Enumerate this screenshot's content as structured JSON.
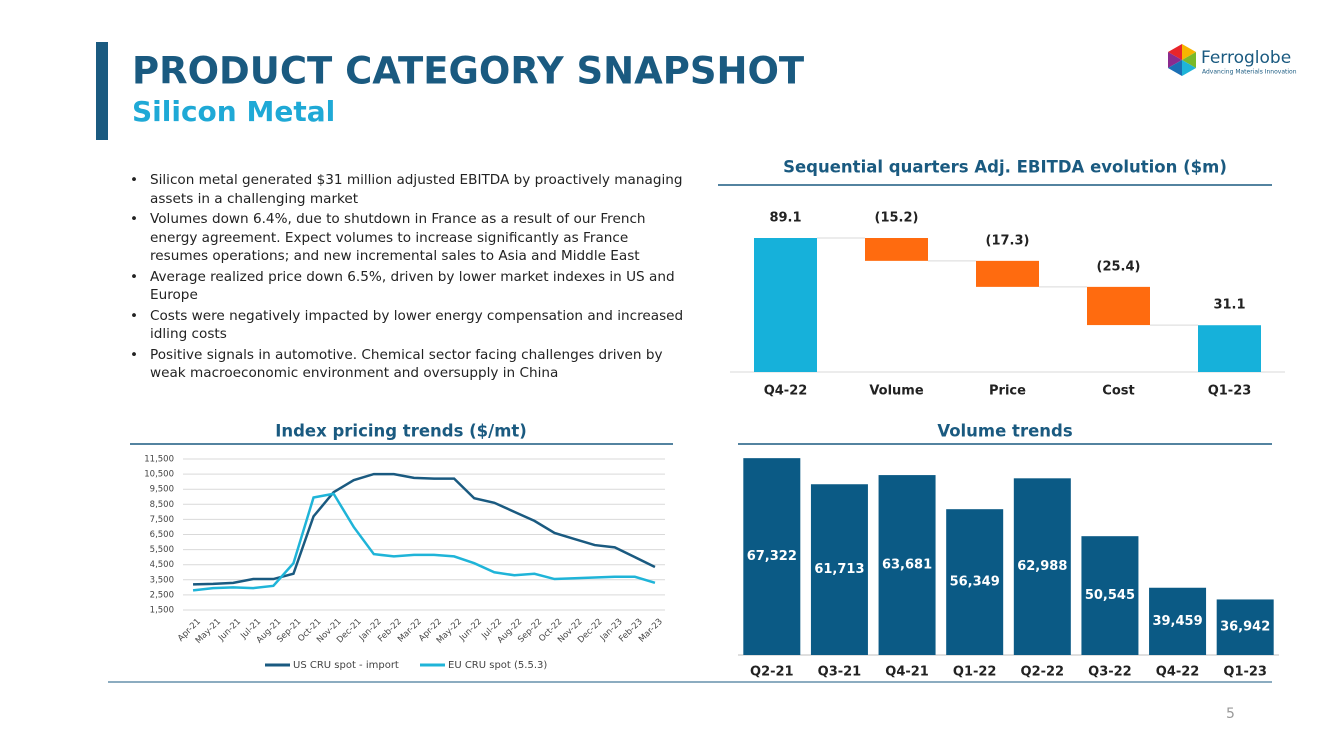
{
  "header": {
    "title": "PRODUCT CATEGORY SNAPSHOT",
    "subtitle": "Silicon Metal"
  },
  "logo": {
    "name": "Ferroglobe",
    "tagline": "Advancing Materials Innovation"
  },
  "bullets": [
    "Silicon metal generated $31 million adjusted EBITDA by proactively managing assets in a challenging market",
    "Volumes down 6.4%, due to shutdown in France as a result of our French energy agreement. Expect volumes to increase significantly as France resumes operations; and new incremental sales to Asia and Middle East",
    "Average realized price down 6.5%, driven by lower market indexes in US and Europe",
    "Costs were negatively impacted by lower energy compensation and increased idling costs",
    "Positive signals in automotive. Chemical sector facing challenges driven by weak macroeconomic environment and oversupply in China"
  ],
  "page_number": "5",
  "chart_data": [
    {
      "type": "waterfall",
      "title": "Sequential quarters Adj. EBITDA evolution ($m)",
      "categories": [
        "Q4-22",
        "Volume",
        "Price",
        "Cost",
        "Q1-23"
      ],
      "values": [
        89.1,
        -15.2,
        -17.3,
        -25.4,
        31.1
      ],
      "value_labels": [
        "89.1",
        "(15.2)",
        "(17.3)",
        "(25.4)",
        "31.1"
      ],
      "colors": [
        "#16b1da",
        "#ff6b0f",
        "#ff6b0f",
        "#ff6b0f",
        "#16b1da"
      ]
    },
    {
      "type": "line",
      "title": "Index pricing trends ($/mt)",
      "categories": [
        "Apr-21",
        "May-21",
        "Jun-21",
        "Jul-21",
        "Aug-21",
        "Sep-21",
        "Oct-21",
        "Nov-21",
        "Dec-21",
        "Jan-22",
        "Feb-22",
        "Mar-22",
        "Apr-22",
        "May-22",
        "Jun-22",
        "Jul-22",
        "Aug-22",
        "Sep-22",
        "Oct-22",
        "Nov-22",
        "Dec-22",
        "Jan-23",
        "Feb-23",
        "Mar-23"
      ],
      "series": [
        {
          "name": "US CRU spot - import",
          "color": "#1a5a80",
          "values": [
            3200,
            3230,
            3300,
            3550,
            3550,
            3900,
            7700,
            9300,
            10100,
            10500,
            10500,
            10250,
            10200,
            10200,
            8900,
            8600,
            8000,
            7400,
            6600,
            6200,
            5800,
            5650,
            5000,
            4350
          ]
        },
        {
          "name": "EU CRU spot (5.5.3)",
          "color": "#1fb4d8",
          "values": [
            2800,
            2950,
            3000,
            2950,
            3100,
            4600,
            8950,
            9200,
            7000,
            5200,
            5050,
            5150,
            5150,
            5050,
            4600,
            4000,
            3800,
            3900,
            3550,
            3600,
            3650,
            3700,
            3700,
            3300
          ]
        }
      ],
      "ylim": [
        1500,
        11500
      ],
      "yticks": [
        {
          "value": 1500,
          "label": "1,500"
        },
        {
          "value": 2500,
          "label": "2,500"
        },
        {
          "value": 3500,
          "label": "3,500"
        },
        {
          "value": 4500,
          "label": "4,500"
        },
        {
          "value": 5500,
          "label": "5,500"
        },
        {
          "value": 6500,
          "label": "6,500"
        },
        {
          "value": 7500,
          "label": "7,500"
        },
        {
          "value": 8500,
          "label": "8,500"
        },
        {
          "value": 9500,
          "label": "9,500"
        },
        {
          "value": 10500,
          "label": "10,500"
        },
        {
          "value": 11500,
          "label": "11,500"
        }
      ],
      "grid": true,
      "legend": "bottom"
    },
    {
      "type": "bar",
      "title": "Volume trends",
      "categories": [
        "Q2-21",
        "Q3-21",
        "Q4-21",
        "Q1-22",
        "Q2-22",
        "Q3-22",
        "Q4-22",
        "Q1-23"
      ],
      "values": [
        67322,
        61713,
        63681,
        56349,
        62988,
        50545,
        39459,
        36942
      ],
      "value_labels": [
        "67,322",
        "61,713",
        "63,681",
        "56,349",
        "62,988",
        "50,545",
        "39,459",
        "36,942"
      ],
      "color": "#0b5a85",
      "ylim": [
        25000,
        68000
      ]
    }
  ]
}
